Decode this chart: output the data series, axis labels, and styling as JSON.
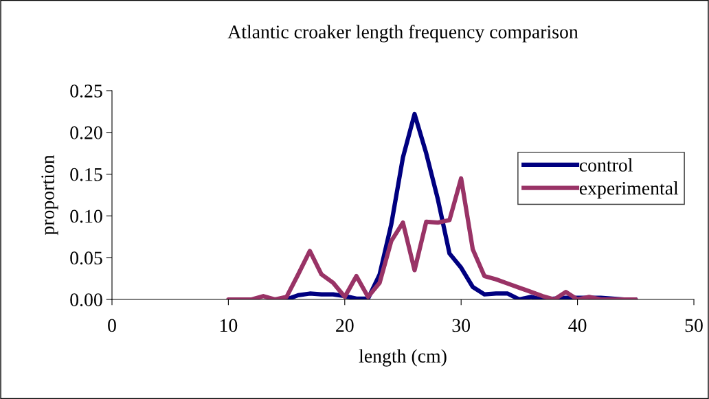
{
  "chart_data": {
    "type": "line",
    "title": "Atlantic croaker length frequency comparison",
    "xlabel": "length (cm)",
    "ylabel": "proportion",
    "x": [
      10,
      11,
      12,
      13,
      14,
      15,
      16,
      17,
      18,
      19,
      20,
      21,
      22,
      23,
      24,
      25,
      26,
      27,
      28,
      29,
      30,
      31,
      32,
      33,
      34,
      35,
      36,
      37,
      38,
      39,
      40,
      41,
      42,
      43,
      44,
      45
    ],
    "series": [
      {
        "name": "control",
        "color": "#000080",
        "values": [
          null,
          null,
          null,
          null,
          null,
          0,
          0.005,
          0.007,
          0.006,
          0.006,
          0.004,
          0.001,
          0.001,
          0.03,
          0.09,
          0.17,
          0.222,
          0.175,
          0.12,
          0.055,
          0.038,
          0.015,
          0.006,
          0.007,
          0.007,
          0,
          0.003,
          0,
          0.001,
          0.002,
          0.002,
          0.002,
          0.002,
          0.001,
          0,
          0
        ]
      },
      {
        "name": "experimental",
        "color": "#993366",
        "values": [
          0,
          0,
          0,
          0.004,
          0,
          0.003,
          0.03,
          0.058,
          0.03,
          0.02,
          0.003,
          0.028,
          0.003,
          0.02,
          0.07,
          0.092,
          0.035,
          0.093,
          0.092,
          0.095,
          0.145,
          0.06,
          0.028,
          0.024,
          0.019,
          0.014,
          0.009,
          0.004,
          0,
          0.009,
          0,
          0.003,
          0,
          0,
          0,
          0
        ]
      }
    ],
    "xlim": [
      0,
      50
    ],
    "xticks": [
      0,
      10,
      20,
      30,
      40,
      50
    ],
    "ylim": [
      0,
      0.25
    ],
    "yticks": [
      {
        "value": 0,
        "label": "0.00"
      },
      {
        "value": 0.05,
        "label": "0.05"
      },
      {
        "value": 0.1,
        "label": "0.10"
      },
      {
        "value": 0.15,
        "label": "0.15"
      },
      {
        "value": 0.2,
        "label": "0.20"
      },
      {
        "value": 0.25,
        "label": "0.25"
      }
    ],
    "legend": "right",
    "grid": false
  }
}
